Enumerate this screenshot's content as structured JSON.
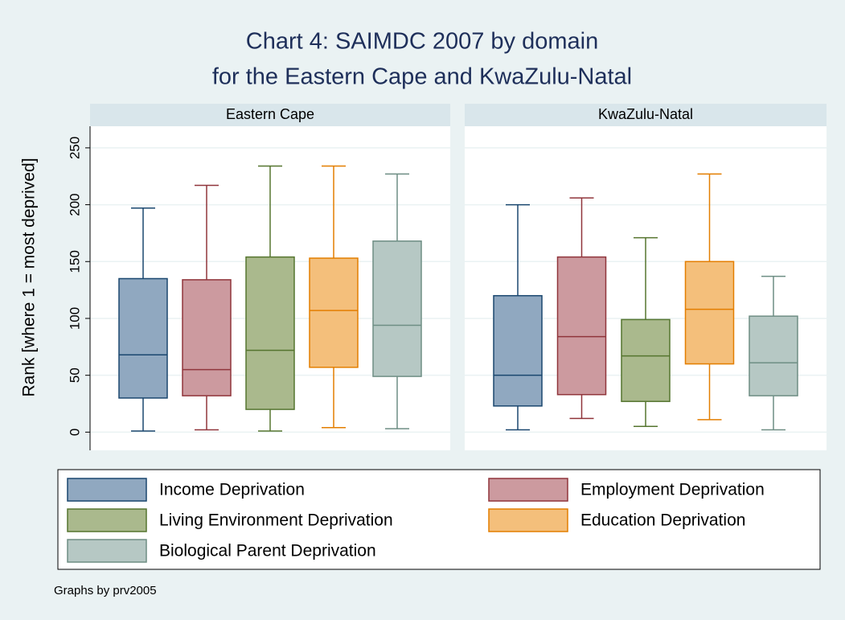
{
  "chart_data": {
    "type": "box",
    "title": "Chart 4: SAIMDC 2007 by domain",
    "subtitle": "for the Eastern Cape and KwaZulu-Natal",
    "y_label": "Rank [where 1 = most deprived]",
    "panels": [
      "Eastern Cape",
      "KwaZulu-Natal"
    ],
    "ylim": [
      -16,
      269
    ],
    "yticks": [
      0,
      50,
      100,
      150,
      200,
      250
    ],
    "grid": true,
    "series": [
      {
        "name": "Income Deprivation",
        "color": "#90a8c0",
        "edge_color": "#1a476f",
        "boxes": [
          {
            "min": 1,
            "q1": 30,
            "median": 68,
            "q3": 135,
            "max": 197
          },
          {
            "min": 2,
            "q1": 23,
            "median": 50,
            "q3": 120,
            "max": 200
          }
        ]
      },
      {
        "name": "Employment Deprivation",
        "color": "#cc9a9f",
        "edge_color": "#90353b",
        "boxes": [
          {
            "min": 2,
            "q1": 32,
            "median": 55,
            "q3": 134,
            "max": 217
          },
          {
            "min": 12,
            "q1": 33,
            "median": 84,
            "q3": 154,
            "max": 206
          }
        ]
      },
      {
        "name": "Living Environment Deprivation",
        "color": "#aab98d",
        "edge_color": "#55752f",
        "boxes": [
          {
            "min": 1,
            "q1": 20,
            "median": 72,
            "q3": 154,
            "max": 234
          },
          {
            "min": 5,
            "q1": 27,
            "median": 67,
            "q3": 99,
            "max": 171
          }
        ]
      },
      {
        "name": "Education Deprivation",
        "color": "#f4bf7b",
        "edge_color": "#e37e00",
        "boxes": [
          {
            "min": 4,
            "q1": 57,
            "median": 107,
            "q3": 153,
            "max": 234
          },
          {
            "min": 11,
            "q1": 60,
            "median": 108,
            "q3": 150,
            "max": 227
          }
        ]
      },
      {
        "name": "Biological Parent Deprivation",
        "color": "#b6c8c4",
        "edge_color": "#6e8e84",
        "boxes": [
          {
            "min": 3,
            "q1": 49,
            "median": 94,
            "q3": 168,
            "max": 227
          },
          {
            "min": 2,
            "q1": 32,
            "median": 61,
            "q3": 102,
            "max": 137
          }
        ]
      }
    ],
    "note": "Graphs by prv2005"
  }
}
